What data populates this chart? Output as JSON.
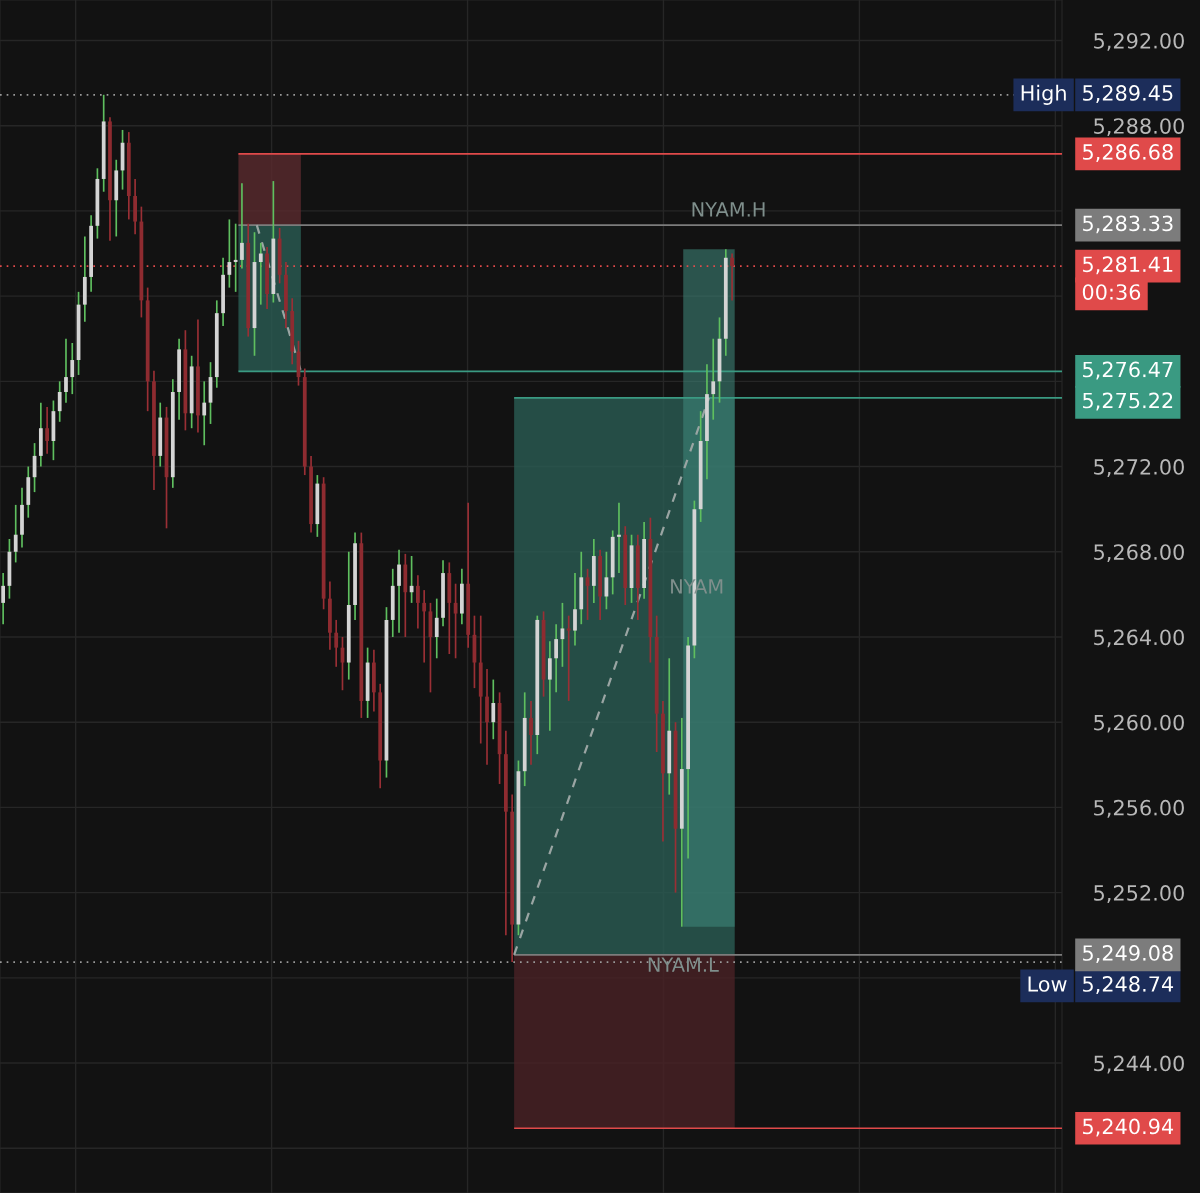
{
  "chart_data": {
    "type": "candlestick",
    "categories": [
      null,
      null,
      null,
      null,
      null,
      null,
      null,
      null,
      null,
      null,
      null,
      null,
      null,
      null,
      null,
      null,
      null,
      null,
      null,
      null,
      null,
      null,
      null,
      null,
      null,
      null,
      null,
      null,
      null,
      null,
      null,
      null,
      null,
      null,
      null,
      null,
      null,
      null,
      null,
      null,
      null,
      null,
      null,
      null,
      null,
      null,
      null,
      null,
      null,
      null,
      null,
      null,
      null,
      null,
      null,
      null,
      null,
      null,
      null,
      null,
      null,
      null,
      null,
      null,
      null,
      null,
      null,
      null,
      null,
      null,
      null,
      null,
      null,
      null,
      null,
      null,
      null,
      null,
      null,
      null,
      null,
      null,
      null,
      null,
      null,
      null,
      null,
      null,
      null,
      null,
      null,
      null,
      null,
      null,
      null,
      null,
      null,
      null,
      null,
      null,
      null,
      null,
      null,
      null,
      null,
      null,
      null,
      null,
      null,
      null,
      null,
      null,
      null,
      null,
      null,
      null,
      null,
      null,
      null,
      null,
      null,
      null,
      null,
      null,
      null,
      null,
      null,
      null,
      null,
      null,
      null,
      null,
      null,
      null,
      null,
      null,
      null,
      null,
      null,
      null,
      null,
      null,
      null,
      null,
      null,
      null,
      null,
      null,
      null,
      null,
      null,
      null,
      null,
      null,
      null,
      null,
      null,
      null,
      null,
      null,
      null,
      null,
      null,
      null,
      null,
      null,
      null,
      null,
      null
    ],
    "ohlc": [
      [
        5265.6,
        5267.0,
        5264.6,
        5266.4
      ],
      [
        5266.4,
        5268.6,
        5265.8,
        5268.0
      ],
      [
        5268.0,
        5270.2,
        5267.5,
        5268.8
      ],
      [
        5268.8,
        5271.0,
        5268.2,
        5270.2
      ],
      [
        5270.2,
        5272.0,
        5269.6,
        5271.5
      ],
      [
        5271.5,
        5273.1,
        5270.8,
        5272.5
      ],
      [
        5272.5,
        5275.0,
        5272.0,
        5273.8
      ],
      [
        5273.8,
        5274.8,
        5272.6,
        5273.2
      ],
      [
        5273.2,
        5275.1,
        5272.3,
        5274.6
      ],
      [
        5274.6,
        5276.0,
        5274.1,
        5275.5
      ],
      [
        5275.5,
        5278.0,
        5275.0,
        5276.2
      ],
      [
        5276.2,
        5277.8,
        5275.4,
        5277.0
      ],
      [
        5277.0,
        5280.2,
        5276.3,
        5279.6
      ],
      [
        5279.6,
        5282.8,
        5278.8,
        5280.9
      ],
      [
        5280.9,
        5283.8,
        5280.2,
        5283.3
      ],
      [
        5283.3,
        5286.0,
        5282.7,
        5285.5
      ],
      [
        5285.5,
        5289.45,
        5284.9,
        5288.2
      ],
      [
        5288.2,
        5288.4,
        5282.6,
        5284.5
      ],
      [
        5284.5,
        5286.4,
        5282.8,
        5285.9
      ],
      [
        5285.9,
        5287.8,
        5285.0,
        5287.2
      ],
      [
        5287.2,
        5287.7,
        5283.6,
        5284.7
      ],
      [
        5284.7,
        5285.5,
        5282.9,
        5283.5
      ],
      [
        5283.5,
        5284.2,
        5279.0,
        5279.8
      ],
      [
        5279.8,
        5280.4,
        5274.6,
        5276.0
      ],
      [
        5276.0,
        5276.5,
        5270.9,
        5272.5
      ],
      [
        5272.5,
        5275.0,
        5272.0,
        5274.3
      ],
      [
        5274.3,
        5274.8,
        5269.1,
        5271.5
      ],
      [
        5271.5,
        5276.1,
        5271.0,
        5275.5
      ],
      [
        5275.5,
        5278.0,
        5274.2,
        5277.5
      ],
      [
        5277.5,
        5278.4,
        5273.7,
        5274.5
      ],
      [
        5274.5,
        5277.2,
        5273.8,
        5276.7
      ],
      [
        5276.7,
        5278.9,
        5273.6,
        5274.4
      ],
      [
        5274.4,
        5276.0,
        5273.0,
        5275.0
      ],
      [
        5275.0,
        5276.9,
        5274.0,
        5276.2
      ],
      [
        5276.2,
        5279.8,
        5275.7,
        5279.2
      ],
      [
        5279.2,
        5281.8,
        5278.6,
        5281.0
      ],
      [
        5281.0,
        5283.6,
        5280.4,
        5281.6
      ],
      [
        5281.6,
        5283.4,
        5280.2,
        5281.7
      ],
      [
        5281.7,
        5285.3,
        5281.3,
        5282.5
      ],
      [
        5282.5,
        5283.4,
        5278.1,
        5278.5
      ],
      [
        5278.5,
        5283.0,
        5277.2,
        5281.6
      ],
      [
        5281.6,
        5282.5,
        5279.6,
        5282.0
      ],
      [
        5282.0,
        5282.3,
        5279.4,
        5280.1
      ],
      [
        5280.1,
        5285.4,
        5279.7,
        5282.7
      ],
      [
        5282.7,
        5283.2,
        5280.6,
        5281.0
      ],
      [
        5281.0,
        5281.6,
        5278.5,
        5279.3
      ],
      [
        5279.3,
        5279.9,
        5276.8,
        5277.4
      ],
      [
        5277.4,
        5277.9,
        5275.8,
        5276.2
      ],
      [
        5276.2,
        5276.6,
        5271.6,
        5272.0
      ],
      [
        5272.0,
        5272.5,
        5268.9,
        5269.3
      ],
      [
        5269.3,
        5271.6,
        5268.7,
        5271.2
      ],
      [
        5271.2,
        5271.5,
        5265.3,
        5265.8
      ],
      [
        5265.8,
        5266.6,
        5263.4,
        5264.2
      ],
      [
        5264.2,
        5264.8,
        5262.6,
        5263.5
      ],
      [
        5263.5,
        5264.0,
        5261.5,
        5262.8
      ],
      [
        5262.8,
        5268.0,
        5262.0,
        5265.5
      ],
      [
        5265.5,
        5268.9,
        5264.8,
        5268.4
      ],
      [
        5268.4,
        5268.9,
        5260.2,
        5261.0
      ],
      [
        5261.0,
        5263.5,
        5260.2,
        5262.8
      ],
      [
        5262.8,
        5263.4,
        5260.5,
        5261.4
      ],
      [
        5261.4,
        5261.8,
        5256.9,
        5258.2
      ],
      [
        5258.2,
        5265.4,
        5257.4,
        5264.8
      ],
      [
        5264.8,
        5267.2,
        5264.0,
        5266.4
      ],
      [
        5266.4,
        5268.1,
        5264.2,
        5267.4
      ],
      [
        5267.4,
        5267.9,
        5264.0,
        5266.1
      ],
      [
        5266.1,
        5267.8,
        5265.6,
        5266.4
      ],
      [
        5266.4,
        5266.9,
        5264.4,
        5265.6
      ],
      [
        5265.6,
        5266.2,
        5262.8,
        5265.2
      ],
      [
        5265.2,
        5265.6,
        5261.4,
        5264.0
      ],
      [
        5264.0,
        5265.8,
        5263.0,
        5264.9
      ],
      [
        5264.9,
        5267.6,
        5264.5,
        5267.0
      ],
      [
        5267.0,
        5267.5,
        5263.2,
        5265.6
      ],
      [
        5265.6,
        5266.5,
        5263.0,
        5265.1
      ],
      [
        5265.1,
        5267.2,
        5264.6,
        5266.5
      ],
      [
        5266.5,
        5270.3,
        5263.5,
        5264.1
      ],
      [
        5264.1,
        5265.0,
        5261.6,
        5262.8
      ],
      [
        5262.8,
        5265.0,
        5259.0,
        5261.2
      ],
      [
        5261.2,
        5262.5,
        5258.0,
        5260.0
      ],
      [
        5260.0,
        5262.0,
        5259.2,
        5260.9
      ],
      [
        5260.9,
        5261.4,
        5257.1,
        5258.5
      ],
      [
        5258.5,
        5259.6,
        5250.0,
        5255.8
      ],
      [
        5255.8,
        5256.6,
        5248.74,
        5250.5
      ],
      [
        5250.5,
        5258.2,
        5250.0,
        5257.7
      ],
      [
        5257.7,
        5261.4,
        5257.0,
        5260.2
      ],
      [
        5260.2,
        5261.0,
        5258.0,
        5259.4
      ],
      [
        5259.4,
        5265.0,
        5258.5,
        5264.8
      ],
      [
        5264.8,
        5265.2,
        5261.2,
        5262.0
      ],
      [
        5262.0,
        5263.8,
        5259.6,
        5263.0
      ],
      [
        5263.0,
        5264.6,
        5261.4,
        5263.9
      ],
      [
        5263.9,
        5265.6,
        5262.6,
        5264.4
      ],
      [
        5264.4,
        5265.0,
        5261.0,
        5264.3
      ],
      [
        5264.3,
        5267.0,
        5263.6,
        5265.3
      ],
      [
        5265.3,
        5268.0,
        5264.6,
        5266.8
      ],
      [
        5266.8,
        5267.2,
        5264.8,
        5266.4
      ],
      [
        5266.4,
        5268.6,
        5265.6,
        5267.8
      ],
      [
        5267.8,
        5268.1,
        5264.8,
        5265.9
      ],
      [
        5265.9,
        5268.0,
        5265.3,
        5266.8
      ],
      [
        5266.8,
        5269.0,
        5266.0,
        5268.7
      ],
      [
        5268.7,
        5270.3,
        5267.0,
        5268.8
      ],
      [
        5268.8,
        5269.2,
        5265.5,
        5266.3
      ],
      [
        5266.3,
        5268.8,
        5265.6,
        5268.3
      ],
      [
        5268.3,
        5268.8,
        5264.8,
        5266.3
      ],
      [
        5266.3,
        5269.4,
        5265.8,
        5268.6
      ],
      [
        5268.6,
        5269.6,
        5262.8,
        5264.0
      ],
      [
        5264.0,
        5265.0,
        5258.6,
        5260.4
      ],
      [
        5260.4,
        5261.0,
        5254.4,
        5257.6
      ],
      [
        5257.6,
        5263.0,
        5256.6,
        5259.6
      ],
      [
        5259.6,
        5260.0,
        5252.0,
        5255.0
      ],
      [
        5255.0,
        5260.2,
        5250.4,
        5257.8
      ],
      [
        5257.8,
        5264.0,
        5253.6,
        5263.6
      ],
      [
        5263.6,
        5270.4,
        5263.0,
        5270.0
      ],
      [
        5270.0,
        5274.6,
        5269.4,
        5273.2
      ],
      [
        5273.2,
        5276.8,
        5271.4,
        5275.4
      ],
      [
        5275.4,
        5278.0,
        5274.2,
        5276.0
      ],
      [
        5276.0,
        5279.0,
        5275.0,
        5278.0
      ],
      [
        5278.0,
        5282.2,
        5277.2,
        5281.8
      ],
      [
        5281.8,
        5282.0,
        5279.8,
        5281.41
      ],
      null,
      null,
      null,
      null,
      null,
      null,
      null,
      null,
      null,
      null,
      null,
      null,
      null,
      null,
      null,
      null,
      null,
      null,
      null,
      null,
      null,
      null,
      null,
      null,
      null,
      null,
      null,
      null,
      null,
      null,
      null,
      null,
      null,
      null,
      null,
      null,
      null,
      null,
      null,
      null,
      null,
      null,
      null,
      null,
      null,
      null,
      null,
      null,
      null,
      null,
      null,
      null
    ],
    "ylim": [
      5237.9,
      5293.9
    ],
    "yticks": [
      {
        "value": 5240,
        "label": null
      },
      {
        "value": 5244,
        "label": "5,244.00"
      },
      {
        "value": 5248,
        "label": null
      },
      {
        "value": 5252,
        "label": "5,252.00"
      },
      {
        "value": 5256,
        "label": "5,256.00"
      },
      {
        "value": 5260,
        "label": "5,260.00"
      },
      {
        "value": 5264,
        "label": "5,264.00"
      },
      {
        "value": 5268,
        "label": "5,268.00"
      },
      {
        "value": 5272,
        "label": "5,272.00"
      },
      {
        "value": 5276,
        "label": null
      },
      {
        "value": 5280,
        "label": null
      },
      {
        "value": 5284,
        "label": null
      },
      {
        "value": 5288,
        "label": "5,288.00"
      },
      {
        "value": 5292,
        "label": "5,292.00"
      }
    ],
    "tick_labels": "y",
    "grid": true,
    "ref_lines": [
      {
        "axis": "y",
        "value": 5289.45,
        "label": "5,289.45",
        "color": "#9a9a9a",
        "line_style": "dotted"
      },
      {
        "axis": "y",
        "value": 5248.74,
        "label": "5,248.74",
        "color": "#9a9a9a",
        "line_style": "dotted"
      },
      {
        "axis": "y",
        "value": 5281.41,
        "label": "5,281.41",
        "color": "#e04a4a",
        "line_style": "dotted"
      },
      {
        "axis": "y",
        "value": 5286.68,
        "label": "5,286.68",
        "color": "#e04a4a",
        "line_style": "solid"
      },
      {
        "axis": "y",
        "value": 5283.33,
        "label": "5,283.33",
        "color": "#7c7c7c",
        "line_style": "solid"
      },
      {
        "axis": "y",
        "value": 5276.47,
        "label": "5,276.47",
        "color": "#3a9a82",
        "line_style": "solid"
      },
      {
        "axis": "y",
        "value": 5275.22,
        "label": "5,275.22",
        "color": "#3a9a82",
        "line_style": "solid"
      },
      {
        "axis": "y",
        "value": 5249.08,
        "label": "5,249.08",
        "color": "#7c7c7c",
        "line_style": "solid"
      },
      {
        "axis": "y",
        "value": 5240.94,
        "label": "5,240.94",
        "color": "#e04a4a",
        "line_style": "solid"
      }
    ],
    "annotations": [
      "NYAM.H",
      "NYAM",
      "NYAM.L",
      "00:36",
      "High",
      "Low"
    ]
  }
}
